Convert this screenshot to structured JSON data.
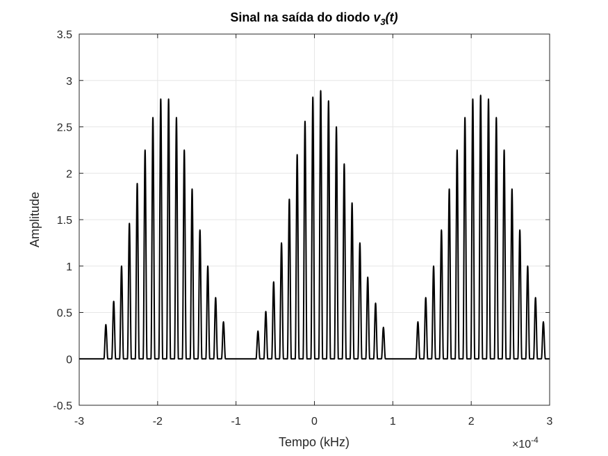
{
  "chart_data": {
    "type": "line",
    "title": "Sinal na saída do diodo",
    "title_var": "v",
    "title_sub": "3",
    "title_arg": "(t)",
    "xlabel": "Tempo (kHz)",
    "ylabel": "Amplitude",
    "x_exponent_base": "×10",
    "x_exponent_power": "-4",
    "xlim": [
      -3,
      3
    ],
    "ylim": [
      -0.5,
      3.5
    ],
    "xticks": [
      -3,
      -2,
      -1,
      0,
      1,
      2,
      3
    ],
    "xtick_labels": [
      "-3",
      "-2",
      "-1",
      "0",
      "1",
      "2",
      "3"
    ],
    "yticks": [
      -0.5,
      0,
      0.5,
      1,
      1.5,
      2,
      2.5,
      3,
      3.5
    ],
    "ytick_labels": [
      "-0.5",
      "0",
      "0.5",
      "1",
      "1.5",
      "2",
      "2.5",
      "3",
      "3.5"
    ],
    "grid": true,
    "line_color": "#000000",
    "grid_color": "#e6e6e6",
    "series": [
      {
        "pulse_width": 0.05,
        "pulses": [
          {
            "x": -2.66,
            "y": 0.37
          },
          {
            "x": -2.56,
            "y": 0.62
          },
          {
            "x": -2.46,
            "y": 1.0
          },
          {
            "x": -2.36,
            "y": 1.46
          },
          {
            "x": -2.26,
            "y": 1.89
          },
          {
            "x": -2.16,
            "y": 2.25
          },
          {
            "x": -2.06,
            "y": 2.6
          },
          {
            "x": -1.96,
            "y": 2.8
          },
          {
            "x": -1.86,
            "y": 2.8
          },
          {
            "x": -1.76,
            "y": 2.6
          },
          {
            "x": -1.66,
            "y": 2.25
          },
          {
            "x": -1.56,
            "y": 1.83
          },
          {
            "x": -1.46,
            "y": 1.39
          },
          {
            "x": -1.36,
            "y": 1.0
          },
          {
            "x": -1.26,
            "y": 0.66
          },
          {
            "x": -1.16,
            "y": 0.4
          },
          {
            "x": -0.72,
            "y": 0.3
          },
          {
            "x": -0.62,
            "y": 0.51
          },
          {
            "x": -0.52,
            "y": 0.83
          },
          {
            "x": -0.42,
            "y": 1.25
          },
          {
            "x": -0.32,
            "y": 1.72
          },
          {
            "x": -0.22,
            "y": 2.2
          },
          {
            "x": -0.12,
            "y": 2.56
          },
          {
            "x": -0.02,
            "y": 2.82
          },
          {
            "x": 0.08,
            "y": 2.89
          },
          {
            "x": 0.18,
            "y": 2.78
          },
          {
            "x": 0.28,
            "y": 2.5
          },
          {
            "x": 0.38,
            "y": 2.1
          },
          {
            "x": 0.48,
            "y": 1.68
          },
          {
            "x": 0.58,
            "y": 1.25
          },
          {
            "x": 0.68,
            "y": 0.88
          },
          {
            "x": 0.78,
            "y": 0.6
          },
          {
            "x": 0.88,
            "y": 0.34
          },
          {
            "x": 1.32,
            "y": 0.4
          },
          {
            "x": 1.42,
            "y": 0.66
          },
          {
            "x": 1.52,
            "y": 1.0
          },
          {
            "x": 1.62,
            "y": 1.39
          },
          {
            "x": 1.72,
            "y": 1.83
          },
          {
            "x": 1.82,
            "y": 2.25
          },
          {
            "x": 1.92,
            "y": 2.6
          },
          {
            "x": 2.02,
            "y": 2.8
          },
          {
            "x": 2.12,
            "y": 2.84
          },
          {
            "x": 2.22,
            "y": 2.8
          },
          {
            "x": 2.32,
            "y": 2.6
          },
          {
            "x": 2.42,
            "y": 2.25
          },
          {
            "x": 2.52,
            "y": 1.83
          },
          {
            "x": 2.62,
            "y": 1.39
          },
          {
            "x": 2.72,
            "y": 1.0
          },
          {
            "x": 2.82,
            "y": 0.66
          },
          {
            "x": 2.92,
            "y": 0.4
          }
        ]
      }
    ]
  }
}
